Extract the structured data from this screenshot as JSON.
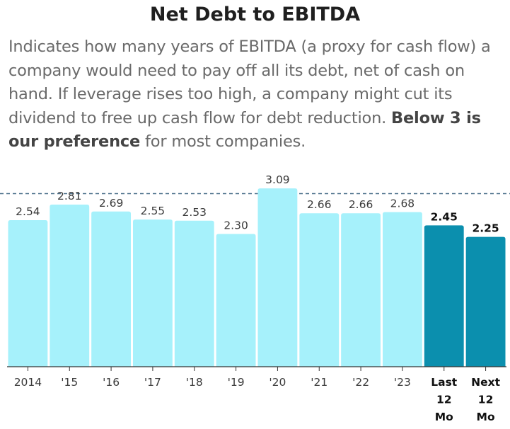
{
  "title": "Net Debt to EBITDA",
  "description": {
    "text_before": "Indicates how many years of EBITDA (a proxy for cash flow) a company would need to pay off all its debt, net of cash on hand. If leverage rises too high, a company might cut its dividend to free up cash flow for debt reduction. ",
    "emphasis": "Below 3 is our preference",
    "text_after": " for most companies."
  },
  "colors": {
    "historical_bar": "#a6f1fb",
    "current_bar": "#0b8fae",
    "reference_line": "#4a6f8a",
    "axis": "#333333",
    "text": "#2b2b2b"
  },
  "chart_data": {
    "type": "bar",
    "title": "Net Debt to EBITDA",
    "xlabel": "",
    "ylabel": "",
    "ylim": [
      0,
      3.2
    ],
    "grid": false,
    "reference_line": {
      "value": 3,
      "style": "dashed"
    },
    "categories": [
      [
        "2014"
      ],
      [
        "'15"
      ],
      [
        "'16"
      ],
      [
        "'17"
      ],
      [
        "'18"
      ],
      [
        "'19"
      ],
      [
        "'20"
      ],
      [
        "'21"
      ],
      [
        "'22"
      ],
      [
        "'23"
      ],
      [
        "Last",
        "12",
        "Mo"
      ],
      [
        "Next",
        "12",
        "Mo"
      ]
    ],
    "values": [
      2.54,
      2.81,
      2.69,
      2.55,
      2.53,
      2.3,
      3.09,
      2.66,
      2.66,
      2.68,
      2.45,
      2.25
    ],
    "value_labels": [
      "2.54",
      "2.81",
      "2.69",
      "2.55",
      "2.53",
      "2.30",
      "3.09",
      "2.66",
      "2.66",
      "2.68",
      "2.45",
      "2.25"
    ],
    "highlighted": [
      false,
      false,
      false,
      false,
      false,
      false,
      false,
      false,
      false,
      false,
      true,
      true
    ]
  }
}
